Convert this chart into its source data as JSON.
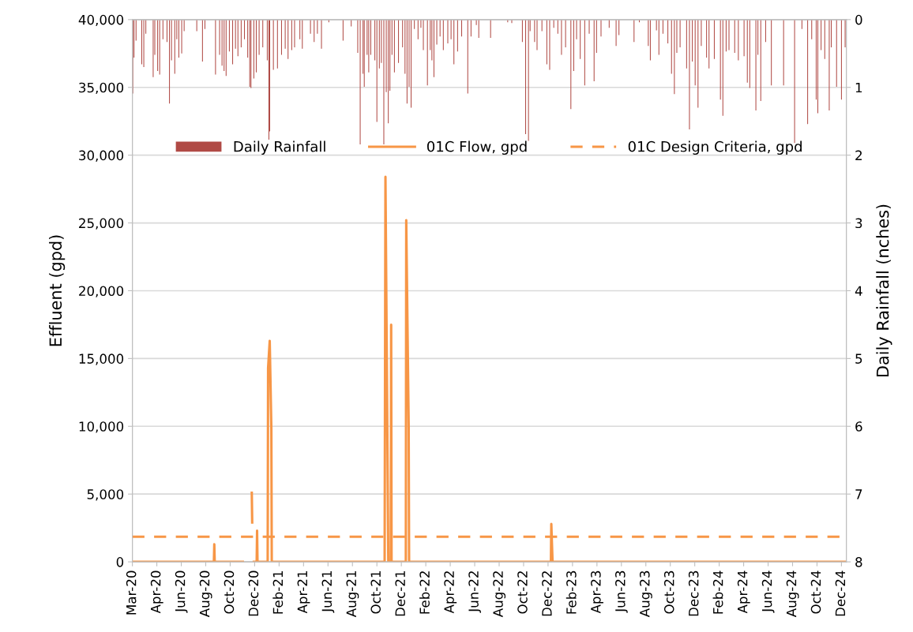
{
  "chart_data": {
    "type": "line",
    "ylabel": "Effluent (gpd)",
    "y2label": "Daily Rainfall (nches)",
    "ylim": [
      0,
      40000
    ],
    "yticks": [
      {
        "value": 0,
        "label": "0"
      },
      {
        "value": 5000,
        "label": "5,000"
      },
      {
        "value": 10000,
        "label": "10,000"
      },
      {
        "value": 15000,
        "label": "15,000"
      },
      {
        "value": 20000,
        "label": "20,000"
      },
      {
        "value": 25000,
        "label": "25,000"
      },
      {
        "value": 30000,
        "label": "30,000"
      },
      {
        "value": 35000,
        "label": "35,000"
      },
      {
        "value": 40000,
        "label": "40,000"
      }
    ],
    "y2lim": [
      8,
      0
    ],
    "y2ticks": [
      0,
      1,
      2,
      3,
      4,
      5,
      6,
      7,
      8
    ],
    "xlim": [
      "2020-03-01",
      "2024-12-17"
    ],
    "xticks": [
      {
        "value": "2020-03-01",
        "label": "Mar-20"
      },
      {
        "value": "2020-04-30",
        "label": "Apr-20"
      },
      {
        "value": "2020-06-29",
        "label": "Jun-20"
      },
      {
        "value": "2020-08-28",
        "label": "Aug-20"
      },
      {
        "value": "2020-10-27",
        "label": "Oct-20"
      },
      {
        "value": "2020-12-26",
        "label": "Dec-20"
      },
      {
        "value": "2021-02-24",
        "label": "Feb-21"
      },
      {
        "value": "2021-04-25",
        "label": "Apr-21"
      },
      {
        "value": "2021-06-24",
        "label": "Jun-21"
      },
      {
        "value": "2021-08-23",
        "label": "Aug-21"
      },
      {
        "value": "2021-10-22",
        "label": "Oct-21"
      },
      {
        "value": "2021-12-21",
        "label": "Dec-21"
      },
      {
        "value": "2022-02-19",
        "label": "Feb-22"
      },
      {
        "value": "2022-04-20",
        "label": "Apr-22"
      },
      {
        "value": "2022-06-19",
        "label": "Jun-22"
      },
      {
        "value": "2022-08-18",
        "label": "Aug-22"
      },
      {
        "value": "2022-10-17",
        "label": "Oct-22"
      },
      {
        "value": "2022-12-16",
        "label": "Dec-22"
      },
      {
        "value": "2023-02-14",
        "label": "Feb-23"
      },
      {
        "value": "2023-04-15",
        "label": "Apr-23"
      },
      {
        "value": "2023-06-14",
        "label": "Jun-23"
      },
      {
        "value": "2023-08-13",
        "label": "Aug-23"
      },
      {
        "value": "2023-10-12",
        "label": "Oct-23"
      },
      {
        "value": "2023-12-11",
        "label": "Dec-23"
      },
      {
        "value": "2024-02-09",
        "label": "Feb-24"
      },
      {
        "value": "2024-04-09",
        "label": "Apr-24"
      },
      {
        "value": "2024-06-08",
        "label": "Jun-24"
      },
      {
        "value": "2024-08-07",
        "label": "Aug-24"
      },
      {
        "value": "2024-10-06",
        "label": "Oct-24"
      },
      {
        "value": "2024-12-05",
        "label": "Dec-24"
      }
    ],
    "grid": true,
    "legend": "top",
    "series": [
      {
        "name": "Daily Rainfall",
        "type": "bar",
        "axis": "y2",
        "color": "#b04a45",
        "x": [
          "2020-03-02",
          "2020-03-05",
          "2020-03-10",
          "2020-03-24",
          "2020-03-29",
          "2020-04-03",
          "2020-04-21",
          "2020-04-25",
          "2020-05-02",
          "2020-05-07",
          "2020-05-15",
          "2020-05-25",
          "2020-05-31",
          "2020-06-05",
          "2020-06-13",
          "2020-06-18",
          "2020-06-23",
          "2020-06-30",
          "2020-07-06",
          "2020-08-06",
          "2020-08-20",
          "2020-08-26",
          "2020-09-21",
          "2020-10-01",
          "2020-10-07",
          "2020-10-12",
          "2020-10-17",
          "2020-10-25",
          "2020-11-02",
          "2020-11-09",
          "2020-11-15",
          "2020-11-23",
          "2020-12-01",
          "2020-12-09",
          "2020-12-14",
          "2020-12-17",
          "2020-12-24",
          "2020-12-30",
          "2021-01-06",
          "2021-01-15",
          "2021-01-26",
          "2021-01-30",
          "2021-02-01",
          "2021-02-10",
          "2021-02-20",
          "2021-03-02",
          "2021-03-11",
          "2021-03-18",
          "2021-03-27",
          "2021-04-03",
          "2021-04-16",
          "2021-04-22",
          "2021-05-12",
          "2021-05-21",
          "2021-05-29",
          "2021-06-08",
          "2021-06-26",
          "2021-07-31",
          "2021-08-20",
          "2021-09-05",
          "2021-09-11",
          "2021-09-18",
          "2021-09-21",
          "2021-09-28",
          "2021-10-02",
          "2021-10-07",
          "2021-10-17",
          "2021-10-22",
          "2021-10-28",
          "2021-11-02",
          "2021-11-08",
          "2021-11-14",
          "2021-11-19",
          "2021-11-23",
          "2021-11-28",
          "2021-12-04",
          "2021-12-14",
          "2021-12-24",
          "2021-12-30",
          "2022-01-04",
          "2022-01-09",
          "2022-01-14",
          "2022-01-22",
          "2022-01-31",
          "2022-02-07",
          "2022-02-13",
          "2022-02-23",
          "2022-03-02",
          "2022-03-06",
          "2022-03-11",
          "2022-03-18",
          "2022-03-26",
          "2022-04-03",
          "2022-04-14",
          "2022-04-22",
          "2022-04-29",
          "2022-05-08",
          "2022-05-18",
          "2022-06-02",
          "2022-06-10",
          "2022-06-23",
          "2022-06-29",
          "2022-07-28",
          "2022-09-08",
          "2022-09-18",
          "2022-10-14",
          "2022-10-22",
          "2022-10-29",
          "2022-11-02",
          "2022-11-13",
          "2022-11-19",
          "2022-12-01",
          "2022-12-13",
          "2022-12-20",
          "2022-12-30",
          "2023-01-09",
          "2023-01-18",
          "2023-01-28",
          "2023-02-10",
          "2023-02-17",
          "2023-02-24",
          "2023-03-05",
          "2023-03-16",
          "2023-03-27",
          "2023-04-08",
          "2023-04-14",
          "2023-04-25",
          "2023-05-15",
          "2023-06-01",
          "2023-06-08",
          "2023-07-15",
          "2023-07-28",
          "2023-08-19",
          "2023-08-24",
          "2023-09-08",
          "2023-09-14",
          "2023-09-24",
          "2023-10-06",
          "2023-10-15",
          "2023-10-22",
          "2023-10-28",
          "2023-11-05",
          "2023-11-21",
          "2023-11-28",
          "2023-12-05",
          "2023-12-12",
          "2023-12-19",
          "2023-12-27",
          "2024-01-09",
          "2024-01-15",
          "2024-01-28",
          "2024-02-12",
          "2024-02-18",
          "2024-02-26",
          "2024-03-04",
          "2024-03-18",
          "2024-03-27",
          "2024-04-10",
          "2024-04-18",
          "2024-04-24",
          "2024-05-09",
          "2024-05-14",
          "2024-05-21",
          "2024-06-02",
          "2024-06-16",
          "2024-07-16",
          "2024-08-12",
          "2024-08-30",
          "2024-09-13",
          "2024-09-23",
          "2024-10-04",
          "2024-10-08",
          "2024-10-16",
          "2024-10-25",
          "2024-11-05",
          "2024-11-10",
          "2024-11-23",
          "2024-12-05",
          "2024-12-14"
        ],
        "values": [
          1.09,
          0.56,
          0.31,
          0.66,
          0.7,
          0.21,
          0.85,
          0.52,
          0.76,
          0.81,
          0.29,
          0.33,
          1.24,
          0.6,
          0.8,
          0.29,
          0.56,
          0.5,
          0.17,
          0.17,
          0.62,
          0.14,
          0.81,
          0.52,
          0.68,
          0.76,
          0.83,
          0.47,
          0.66,
          0.43,
          0.54,
          0.41,
          0.29,
          0.56,
          0.99,
          1.01,
          0.87,
          0.78,
          0.52,
          0.41,
          0.6,
          1.77,
          1.65,
          0.74,
          0.72,
          0.52,
          0.43,
          0.58,
          0.45,
          0.41,
          0.29,
          0.43,
          0.21,
          0.33,
          0.21,
          0.43,
          0.04,
          0.31,
          0.1,
          0.49,
          1.84,
          0.8,
          0.99,
          0.52,
          0.78,
          0.52,
          0.6,
          1.51,
          0.72,
          0.64,
          1.84,
          1.07,
          1.53,
          1.05,
          0.52,
          0.78,
          0.64,
          0.41,
          0.8,
          1.24,
          0.99,
          1.3,
          0.14,
          0.29,
          0.12,
          0.45,
          0.97,
          0.45,
          0.6,
          0.85,
          0.37,
          0.25,
          0.45,
          0.35,
          0.29,
          0.66,
          0.47,
          0.25,
          1.09,
          0.25,
          0.08,
          0.27,
          0.27,
          0.04,
          0.05,
          0.33,
          1.69,
          1.79,
          0.17,
          0.33,
          0.45,
          0.17,
          0.66,
          0.74,
          0.12,
          0.21,
          0.52,
          0.41,
          1.32,
          0.76,
          0.29,
          0.58,
          0.97,
          0.21,
          0.91,
          0.49,
          0.25,
          0.12,
          0.39,
          0.23,
          0.33,
          0.04,
          0.39,
          0.6,
          0.16,
          0.52,
          0.21,
          0.35,
          0.8,
          1.1,
          0.49,
          0.41,
          0.72,
          1.62,
          0.62,
          0.97,
          1.3,
          0.39,
          0.56,
          0.72,
          0.58,
          1.18,
          1.42,
          0.47,
          0.45,
          0.49,
          0.6,
          0.54,
          0.93,
          1.01,
          1.34,
          0.52,
          1.2,
          0.33,
          0.97,
          0.97,
          1.82,
          0.14,
          1.54,
          0.29,
          1.18,
          1.38,
          0.45,
          0.58,
          1.34,
          0.41,
          0.99,
          1.18,
          0.41
        ]
      },
      {
        "name": "01C Flow, gpd",
        "color": "#f79646",
        "line_style": "solid",
        "x": [
          "2020-03-01",
          "2020-09-17",
          "2020-09-18",
          "2020-09-19",
          "2020-11-27",
          "2020-11-28",
          "2020-12-19",
          "2020-12-20",
          "2020-12-21",
          "2020-12-24",
          "2020-12-31",
          "2021-01-01",
          "2021-01-02",
          "2021-01-27",
          "2021-01-28",
          "2021-02-01",
          "2021-02-05",
          "2021-02-06",
          "2021-11-10",
          "2021-11-12",
          "2021-11-19",
          "2021-11-25",
          "2021-11-26",
          "2021-11-27",
          "2022-01-01",
          "2022-01-02",
          "2022-01-08",
          "2022-01-09",
          "2022-12-23",
          "2022-12-24",
          "2022-12-27",
          "2024-12-17"
        ],
        "values": [
          0,
          0,
          1300,
          0,
          0,
          null,
          5100,
          2900,
          null,
          0,
          0,
          2300,
          0,
          0,
          14300,
          16300,
          9800,
          0,
          0,
          28400,
          0,
          0,
          17500,
          0,
          0,
          25200,
          10000,
          0,
          0,
          2800,
          0,
          0
        ]
      },
      {
        "name": "01C Design Criteria, gpd",
        "color": "#f79646",
        "line_style": "dashed",
        "x": [
          "2020-03-01",
          "2024-12-17"
        ],
        "values": [
          1850,
          1850
        ]
      }
    ]
  }
}
